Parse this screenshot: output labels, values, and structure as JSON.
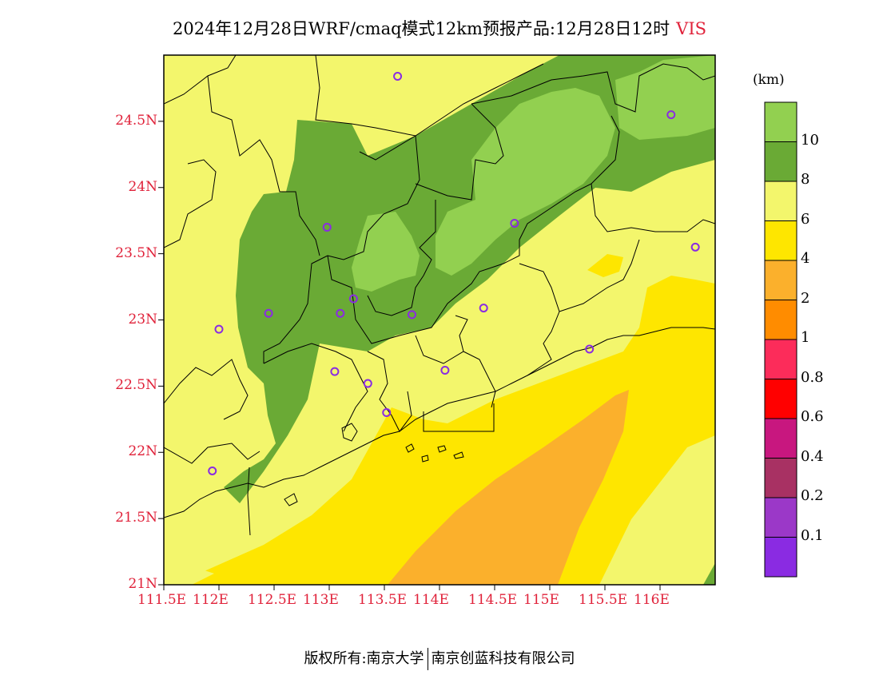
{
  "title": {
    "main": "2024年12月28日WRF/cmaq模式12km预报产品:12月28日12时",
    "variable": "VIS"
  },
  "map": {
    "lat_labels": [
      "24.5N",
      "24N",
      "23.5N",
      "23N",
      "22.5N",
      "22N",
      "21.5N",
      "21N"
    ],
    "lon_labels": [
      "111.5E",
      "112E",
      "112.5E",
      "113E",
      "113.5E",
      "114E",
      "114.5E",
      "115E",
      "115.5E",
      "116E"
    ],
    "lat_range": [
      21,
      25
    ],
    "lon_range": [
      111.5,
      116.5
    ],
    "station_marker_color": "#8a2be2",
    "stations": [
      {
        "lon": 113.62,
        "lat": 24.84
      },
      {
        "lon": 116.1,
        "lat": 24.55
      },
      {
        "lon": 112.98,
        "lat": 23.7
      },
      {
        "lon": 114.68,
        "lat": 23.73
      },
      {
        "lon": 116.32,
        "lat": 23.55
      },
      {
        "lon": 113.22,
        "lat": 23.16
      },
      {
        "lon": 112.45,
        "lat": 23.05
      },
      {
        "lon": 113.1,
        "lat": 23.05
      },
      {
        "lon": 113.75,
        "lat": 23.04
      },
      {
        "lon": 114.4,
        "lat": 23.09
      },
      {
        "lon": 112.0,
        "lat": 22.93
      },
      {
        "lon": 115.36,
        "lat": 22.78
      },
      {
        "lon": 113.05,
        "lat": 22.61
      },
      {
        "lon": 114.05,
        "lat": 22.62
      },
      {
        "lon": 113.35,
        "lat": 22.52
      },
      {
        "lon": 113.52,
        "lat": 22.3
      },
      {
        "lon": 111.94,
        "lat": 21.86
      }
    ]
  },
  "legend": {
    "unit": "(km)",
    "bins": [
      {
        "label": "10",
        "color": "#92d050"
      },
      {
        "label": "8",
        "color": "#6aaa35"
      },
      {
        "label": "6",
        "color": "#f3f66c"
      },
      {
        "label": "4",
        "color": "#fee600"
      },
      {
        "label": "2",
        "color": "#fbb02c"
      },
      {
        "label": "1",
        "color": "#ff8c00"
      },
      {
        "label": "0.8",
        "color": "#fc2c5a"
      },
      {
        "label": "0.6",
        "color": "#ff0000"
      },
      {
        "label": "0.4",
        "color": "#c8177f"
      },
      {
        "label": "0.2",
        "color": "#a83163"
      },
      {
        "label": "0.1",
        "color": "#9b38c8"
      },
      {
        "label": "",
        "color": "#8a2be2"
      }
    ]
  },
  "footer": {
    "left": "版权所有:南京大学",
    "right": "南京创蓝科技有限公司"
  }
}
